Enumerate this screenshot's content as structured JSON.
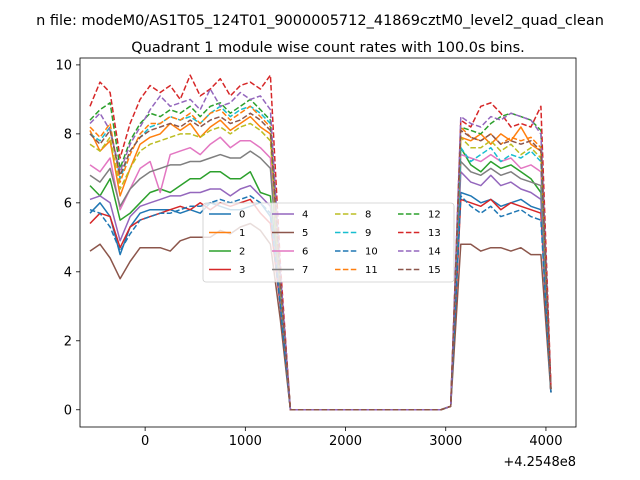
{
  "chart_data": {
    "type": "line",
    "suptitle": "n file: modeM0/AS1T05_124T01_9000005712_41869cztM0_level2_quad_clean",
    "title": "Quadrant 1 module wise count rates with 100.0s bins.",
    "xlabel": "",
    "ylabel": "",
    "x_offset_label": "+4.2548e8",
    "xlim": [
      -650,
      4300
    ],
    "ylim": [
      -0.5,
      10.2
    ],
    "x_ticks": [
      0,
      1000,
      2000,
      3000,
      4000
    ],
    "y_ticks": [
      0,
      2,
      4,
      6,
      8,
      10
    ],
    "x": [
      -550,
      -450,
      -350,
      -250,
      -150,
      -50,
      50,
      150,
      250,
      350,
      450,
      550,
      650,
      750,
      850,
      950,
      1050,
      1150,
      1250,
      1350,
      1450,
      2950,
      3050,
      3150,
      3250,
      3350,
      3450,
      3550,
      3650,
      3750,
      3850,
      3950,
      4050
    ],
    "series": [
      {
        "name": "0",
        "color": "#1f77b4",
        "dash": "solid",
        "values": [
          5.7,
          6.0,
          5.6,
          4.5,
          5.3,
          5.7,
          5.8,
          5.8,
          5.8,
          5.7,
          5.8,
          5.7,
          6.0,
          5.9,
          5.8,
          5.8,
          5.9,
          6.0,
          5.6,
          3.0,
          0.0,
          0.0,
          0.1,
          6.3,
          6.2,
          6.0,
          6.1,
          5.9,
          6.0,
          6.1,
          5.9,
          5.8,
          0.5
        ]
      },
      {
        "name": "1",
        "color": "#ff7f0e",
        "dash": "solid",
        "values": [
          8.1,
          7.5,
          7.8,
          6.2,
          7.0,
          7.7,
          7.9,
          8.0,
          8.3,
          8.1,
          8.3,
          7.9,
          8.2,
          8.4,
          8.1,
          8.3,
          8.5,
          8.2,
          8.0,
          3.5,
          0.0,
          0.0,
          0.1,
          7.9,
          7.8,
          8.0,
          7.7,
          8.0,
          7.8,
          8.2,
          7.7,
          7.5,
          0.6
        ]
      },
      {
        "name": "2",
        "color": "#2ca02c",
        "dash": "solid",
        "values": [
          6.5,
          6.2,
          6.7,
          5.5,
          5.7,
          6.0,
          6.3,
          6.4,
          6.3,
          6.5,
          6.7,
          6.7,
          6.9,
          6.9,
          6.7,
          6.7,
          6.9,
          6.3,
          6.2,
          3.2,
          0.0,
          0.0,
          0.1,
          7.6,
          7.1,
          6.9,
          7.2,
          7.0,
          7.1,
          6.9,
          6.7,
          6.3,
          0.5
        ]
      },
      {
        "name": "3",
        "color": "#d62728",
        "dash": "solid",
        "values": [
          5.4,
          5.7,
          5.6,
          4.7,
          5.3,
          5.5,
          5.6,
          5.7,
          5.8,
          5.9,
          5.8,
          6.0,
          5.8,
          6.0,
          5.9,
          6.0,
          6.1,
          5.7,
          5.4,
          3.0,
          0.0,
          0.0,
          0.1,
          6.1,
          6.0,
          5.9,
          6.1,
          5.8,
          6.0,
          5.9,
          5.8,
          5.7,
          0.5
        ]
      },
      {
        "name": "4",
        "color": "#9467bd",
        "dash": "solid",
        "values": [
          6.1,
          6.2,
          6.0,
          4.9,
          5.6,
          5.9,
          6.0,
          6.1,
          6.2,
          6.2,
          6.3,
          6.3,
          6.4,
          6.4,
          6.2,
          6.4,
          6.5,
          6.2,
          5.9,
          3.1,
          0.0,
          0.0,
          0.1,
          6.9,
          6.6,
          6.5,
          6.8,
          6.5,
          6.6,
          6.4,
          6.3,
          6.1,
          0.5
        ]
      },
      {
        "name": "5",
        "color": "#8c564b",
        "dash": "solid",
        "values": [
          4.6,
          4.8,
          4.4,
          3.8,
          4.3,
          4.7,
          4.7,
          4.7,
          4.6,
          4.9,
          5.0,
          5.0,
          5.0,
          5.2,
          5.1,
          5.3,
          5.4,
          5.2,
          4.8,
          2.6,
          0.0,
          0.0,
          0.1,
          4.8,
          4.8,
          4.6,
          4.7,
          4.7,
          4.6,
          4.7,
          4.5,
          4.5,
          0.5
        ]
      },
      {
        "name": "6",
        "color": "#e377c2",
        "dash": "solid",
        "values": [
          7.1,
          6.9,
          7.3,
          5.8,
          6.4,
          7.0,
          7.2,
          6.3,
          7.4,
          7.5,
          7.6,
          7.4,
          7.7,
          7.9,
          7.6,
          7.8,
          7.8,
          7.6,
          7.3,
          3.4,
          0.0,
          0.0,
          0.1,
          7.4,
          7.3,
          7.2,
          7.4,
          7.2,
          7.3,
          7.0,
          7.1,
          6.9,
          0.6
        ]
      },
      {
        "name": "7",
        "color": "#7f7f7f",
        "dash": "solid",
        "values": [
          6.8,
          6.6,
          7.0,
          5.9,
          6.4,
          6.7,
          6.9,
          7.0,
          7.1,
          7.1,
          7.2,
          7.2,
          7.3,
          7.4,
          7.3,
          7.3,
          7.5,
          7.3,
          7.0,
          3.3,
          0.0,
          0.0,
          0.1,
          7.2,
          6.9,
          6.8,
          7.0,
          6.8,
          6.9,
          6.7,
          6.6,
          6.5,
          0.5
        ]
      },
      {
        "name": "8",
        "color": "#bcbd22",
        "dash": "dashed",
        "values": [
          7.7,
          7.5,
          7.9,
          6.4,
          7.0,
          7.5,
          7.7,
          7.8,
          7.9,
          8.0,
          8.0,
          7.9,
          8.1,
          8.2,
          8.0,
          8.2,
          8.3,
          8.1,
          7.8,
          3.6,
          0.0,
          0.0,
          0.1,
          7.9,
          7.6,
          7.6,
          7.8,
          7.5,
          7.7,
          7.4,
          7.6,
          7.3,
          0.6
        ]
      },
      {
        "name": "9",
        "color": "#17becf",
        "dash": "dashed",
        "values": [
          8.0,
          7.8,
          8.2,
          6.7,
          7.5,
          7.9,
          8.2,
          8.3,
          8.5,
          8.4,
          8.5,
          8.3,
          8.6,
          8.8,
          8.5,
          8.7,
          8.8,
          8.6,
          8.3,
          3.8,
          0.0,
          0.0,
          0.1,
          7.6,
          7.2,
          7.4,
          7.6,
          7.2,
          7.4,
          7.3,
          7.5,
          7.2,
          0.6
        ]
      },
      {
        "name": "10",
        "color": "#1f77b4",
        "dash": "dashed",
        "values": [
          5.8,
          5.7,
          5.3,
          4.6,
          5.1,
          5.5,
          5.6,
          5.7,
          5.7,
          5.8,
          5.9,
          5.9,
          6.0,
          6.1,
          6.0,
          6.1,
          6.2,
          6.0,
          5.7,
          3.0,
          0.0,
          0.0,
          0.1,
          6.2,
          5.9,
          5.7,
          5.9,
          5.6,
          5.7,
          5.8,
          5.6,
          5.5,
          0.5
        ]
      },
      {
        "name": "11",
        "color": "#ff7f0e",
        "dash": "dashed",
        "values": [
          8.2,
          7.9,
          8.3,
          6.6,
          7.4,
          8.0,
          8.3,
          8.3,
          8.5,
          8.4,
          8.6,
          8.3,
          8.6,
          8.7,
          8.4,
          8.6,
          8.8,
          8.5,
          8.2,
          3.8,
          0.0,
          0.0,
          0.1,
          8.2,
          7.9,
          7.8,
          8.0,
          7.7,
          7.9,
          7.8,
          7.9,
          7.6,
          0.6
        ]
      },
      {
        "name": "12",
        "color": "#2ca02c",
        "dash": "dashed",
        "values": [
          8.4,
          8.7,
          8.9,
          7.0,
          7.8,
          8.3,
          8.6,
          8.5,
          8.7,
          8.6,
          8.8,
          8.5,
          8.8,
          8.9,
          8.6,
          8.8,
          9.0,
          8.7,
          8.4,
          3.9,
          0.0,
          0.0,
          0.1,
          8.2,
          8.1,
          8.0,
          8.3,
          8.5,
          8.6,
          8.5,
          8.4,
          8.1,
          0.6
        ]
      },
      {
        "name": "13",
        "color": "#d62728",
        "dash": "dashed",
        "values": [
          8.8,
          9.5,
          9.2,
          7.3,
          8.3,
          9.0,
          9.4,
          9.2,
          9.4,
          9.0,
          9.7,
          9.1,
          9.3,
          9.6,
          9.1,
          9.4,
          9.5,
          9.3,
          9.7,
          4.2,
          0.0,
          0.0,
          0.1,
          8.4,
          8.2,
          8.8,
          8.9,
          8.6,
          8.2,
          8.3,
          8.2,
          8.8,
          0.7
        ]
      },
      {
        "name": "14",
        "color": "#9467bd",
        "dash": "dashed",
        "values": [
          8.3,
          8.6,
          8.1,
          6.9,
          7.7,
          8.2,
          8.7,
          9.1,
          8.8,
          8.9,
          9.0,
          8.7,
          9.3,
          8.8,
          8.9,
          9.2,
          9.0,
          9.1,
          8.7,
          4.0,
          0.0,
          0.0,
          0.1,
          8.5,
          8.3,
          8.2,
          8.5,
          8.4,
          8.6,
          8.5,
          8.4,
          8.0,
          0.6
        ]
      },
      {
        "name": "15",
        "color": "#8c564b",
        "dash": "dashed",
        "values": [
          8.0,
          7.7,
          8.1,
          6.8,
          7.5,
          7.9,
          8.1,
          8.2,
          8.3,
          8.2,
          8.4,
          8.2,
          8.4,
          8.5,
          8.3,
          8.4,
          8.6,
          8.4,
          8.1,
          3.7,
          0.0,
          0.0,
          0.1,
          8.1,
          7.9,
          7.8,
          8.0,
          7.7,
          7.8,
          7.7,
          7.8,
          7.5,
          0.6
        ]
      }
    ],
    "legend_location": "center"
  }
}
